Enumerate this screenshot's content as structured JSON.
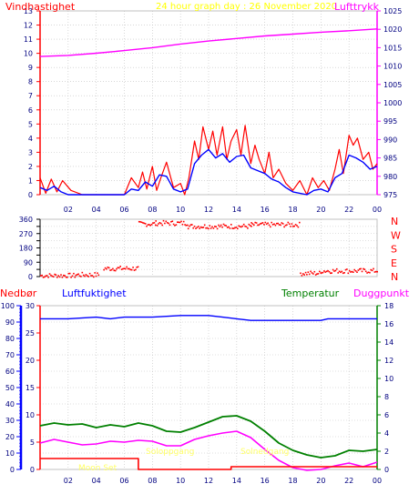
{
  "header": {
    "left_label": "Vindhastighet",
    "title": "24 hour graph day : 26 November 2020",
    "right_label": "Lufttrykk"
  },
  "labels": {
    "nedbor": "Nedbør",
    "luftfuktighet": "Luftfuktighet",
    "temperatur": "Temperatur",
    "duggpunkt": "Duggpunkt",
    "moon_set": "Moon Set",
    "sunrise": "Soloppgang",
    "sunset": "Solnedgang"
  },
  "colors": {
    "wind": "#ff0000",
    "wind_avg": "#0000ff",
    "pressure": "#ff00ff",
    "humidity": "#0000ff",
    "temperature": "#008000",
    "dewpoint": "#ff00ff",
    "rain": "#ff0000",
    "annotation": "#ffff66"
  },
  "chart_data": [
    {
      "type": "line",
      "name": "wind_pressure",
      "x_ticks": [
        "02",
        "04",
        "06",
        "08",
        "10",
        "12",
        "14",
        "16",
        "18",
        "20",
        "22",
        "00"
      ],
      "y_left_ticks": [
        0,
        1,
        2,
        3,
        4,
        5,
        6,
        7,
        8,
        9,
        10,
        11,
        12,
        13
      ],
      "ylim_left": [
        0,
        13
      ],
      "y_right_ticks": [
        975,
        980,
        985,
        990,
        995,
        1000,
        1005,
        1010,
        1015,
        1020,
        1025
      ],
      "ylim_right": [
        975,
        1025
      ],
      "series": [
        {
          "key": "pressure",
          "axis": "right",
          "x": [
            0,
            2,
            4,
            6,
            8,
            10,
            12,
            14,
            16,
            18,
            20,
            22,
            24
          ],
          "y": [
            1012.6,
            1012.9,
            1013.5,
            1014.2,
            1015.0,
            1016.0,
            1016.8,
            1017.5,
            1018.2,
            1018.7,
            1019.2,
            1019.6,
            1020.1
          ]
        },
        {
          "key": "wind_gust",
          "axis": "left",
          "x": [
            0,
            0.4,
            0.8,
            1.2,
            1.6,
            2.2,
            3,
            4,
            5,
            6,
            6.5,
            7,
            7.3,
            7.6,
            8,
            8.3,
            8.6,
            9,
            9.5,
            10,
            10.3,
            10.6,
            11,
            11.3,
            11.6,
            12,
            12.3,
            12.6,
            13,
            13.3,
            13.6,
            14,
            14.3,
            14.6,
            15,
            15.3,
            15.6,
            16,
            16.3,
            16.6,
            17,
            17.5,
            18,
            18.5,
            19,
            19.4,
            19.8,
            20.2,
            20.6,
            21,
            21.3,
            21.6,
            22,
            22.3,
            22.6,
            23,
            23.4,
            23.7,
            24
          ],
          "y": [
            1.2,
            0.1,
            1.1,
            0.2,
            1.0,
            0.3,
            0.0,
            0.0,
            0.0,
            0.0,
            1.2,
            0.5,
            1.6,
            0.4,
            2.0,
            0.3,
            1.2,
            2.3,
            0.5,
            0.8,
            0.0,
            1.2,
            3.8,
            2.5,
            4.8,
            3.2,
            4.5,
            2.8,
            4.8,
            2.5,
            3.8,
            4.6,
            2.8,
            4.9,
            2.2,
            3.5,
            2.5,
            1.5,
            3.0,
            1.2,
            1.8,
            0.8,
            0.3,
            1.0,
            0.0,
            1.2,
            0.5,
            1.0,
            0.3,
            1.8,
            3.2,
            1.5,
            4.2,
            3.5,
            4.0,
            2.5,
            3.0,
            1.8,
            2.2
          ]
        },
        {
          "key": "wind_avg",
          "axis": "left",
          "x": [
            0,
            0.5,
            1,
            1.5,
            2,
            3,
            4,
            5,
            6,
            6.5,
            7,
            7.5,
            8,
            8.5,
            9,
            9.5,
            10,
            10.5,
            11,
            11.5,
            12,
            12.5,
            13,
            13.5,
            14,
            14.5,
            15,
            15.5,
            16,
            16.5,
            17,
            17.5,
            18,
            19,
            19.5,
            20,
            20.5,
            21,
            21.5,
            22,
            22.5,
            23,
            23.5,
            24
          ],
          "y": [
            0.5,
            0.3,
            0.6,
            0.2,
            0.0,
            0.0,
            0.0,
            0.0,
            0.0,
            0.4,
            0.3,
            0.9,
            0.6,
            1.4,
            1.3,
            0.4,
            0.2,
            0.4,
            2.2,
            2.8,
            3.2,
            2.6,
            2.9,
            2.3,
            2.7,
            2.8,
            1.9,
            1.7,
            1.5,
            1.1,
            0.9,
            0.5,
            0.2,
            0.0,
            0.3,
            0.4,
            0.2,
            1.2,
            1.5,
            2.8,
            2.6,
            2.3,
            1.8,
            2.0
          ]
        }
      ]
    },
    {
      "type": "scatter",
      "name": "wind_direction",
      "x_ticks": [
        "02",
        "04",
        "06",
        "08",
        "10",
        "12",
        "14",
        "16",
        "18",
        "20",
        "22",
        "00"
      ],
      "y_ticks": [
        0,
        45,
        90,
        135,
        180,
        225,
        270,
        315,
        360
      ],
      "ylim": [
        0,
        360
      ],
      "compass": [
        "N",
        "W",
        "S",
        "E",
        "N"
      ],
      "bands": [
        {
          "from": 0,
          "to": 2.5,
          "level": 10
        },
        {
          "from": 2.5,
          "to": 4.2,
          "level": 15
        },
        {
          "from": 4.5,
          "to": 7,
          "level": 55
        },
        {
          "from": 7,
          "to": 8.2,
          "level": 335
        },
        {
          "from": 8.2,
          "to": 10.5,
          "level": 340
        },
        {
          "from": 10.5,
          "to": 15,
          "level": 320
        },
        {
          "from": 15,
          "to": 18.5,
          "level": 330
        },
        {
          "from": 18.5,
          "to": 20,
          "level": 25
        },
        {
          "from": 20,
          "to": 24,
          "level": 40
        }
      ]
    },
    {
      "type": "line",
      "name": "humidity_temperature",
      "x_ticks": [
        "02",
        "04",
        "06",
        "08",
        "10",
        "12",
        "14",
        "16",
        "18",
        "20",
        "22",
        "00"
      ],
      "y_left_ticks": [
        0,
        10,
        20,
        30,
        40,
        50,
        60,
        70,
        80,
        90,
        100
      ],
      "ylim_left": [
        0,
        100
      ],
      "y_rain_ticks": [
        0,
        5,
        10,
        15,
        20,
        25,
        30
      ],
      "ylim_rain": [
        0,
        30
      ],
      "y_right_ticks": [
        0,
        2,
        4,
        6,
        8,
        10,
        12,
        14,
        16,
        18
      ],
      "ylim_right": [
        0,
        18
      ],
      "series": [
        {
          "key": "humidity",
          "axis": "left",
          "x": [
            0,
            2,
            4,
            5,
            6,
            8,
            10,
            12,
            13,
            14,
            15,
            16,
            18,
            20,
            20.5,
            21,
            22,
            24
          ],
          "y": [
            92,
            92,
            93,
            92,
            93,
            93,
            94,
            94,
            93,
            92,
            91,
            91,
            91,
            91,
            92,
            92,
            92,
            92
          ]
        },
        {
          "key": "temperature",
          "axis": "right",
          "x": [
            0,
            1,
            2,
            3,
            4,
            5,
            6,
            7,
            8,
            9,
            10,
            11,
            12,
            13,
            14,
            15,
            16,
            17,
            18,
            19,
            20,
            21,
            22,
            23,
            24
          ],
          "y": [
            4.8,
            5.1,
            4.9,
            5.0,
            4.6,
            4.9,
            4.7,
            5.1,
            4.8,
            4.2,
            4.1,
            4.6,
            5.2,
            5.8,
            5.9,
            5.3,
            4.2,
            2.9,
            2.1,
            1.6,
            1.3,
            1.5,
            2.1,
            2.0,
            2.2
          ]
        },
        {
          "key": "dewpoint",
          "axis": "right",
          "x": [
            0,
            1,
            2,
            3,
            4,
            5,
            6,
            7,
            8,
            9,
            10,
            11,
            12,
            13,
            14,
            15,
            16,
            17,
            18,
            19,
            20,
            21,
            22,
            23,
            24
          ],
          "y": [
            2.9,
            3.3,
            3.0,
            2.7,
            2.8,
            3.1,
            3.0,
            3.2,
            3.1,
            2.6,
            2.6,
            3.3,
            3.7,
            4.0,
            4.2,
            3.5,
            2.2,
            1.0,
            0.2,
            -0.1,
            0.0,
            0.4,
            0.7,
            0.3,
            0.8
          ]
        },
        {
          "key": "rain",
          "axis": "rain",
          "x": [
            0,
            7,
            7,
            13.6,
            13.6,
            24
          ],
          "y": [
            2.0,
            2.0,
            0.0,
            0.0,
            0.5,
            0.5
          ]
        }
      ]
    }
  ]
}
